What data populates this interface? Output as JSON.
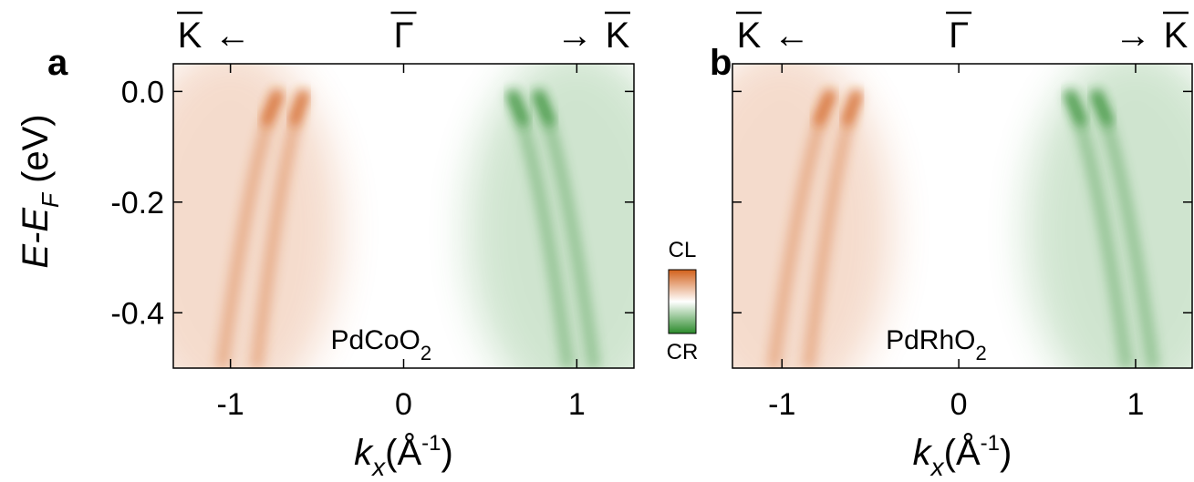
{
  "chart_data": [
    {
      "type": "image",
      "panel_label": "a",
      "top_labels": [
        "K",
        "←",
        "Γ",
        "→",
        "K"
      ],
      "sample": [
        "PdCoO",
        "2"
      ],
      "xlabel": [
        "k",
        "x",
        "(Å",
        "-1",
        ")"
      ],
      "ylabel": [
        "E-E",
        "F",
        " (eV)"
      ],
      "xlim": [
        -1.33,
        1.33
      ],
      "xticks": [
        -1,
        0,
        1
      ],
      "ylim": [
        -0.5,
        0.05
      ],
      "yticks": [
        {
          "value": 0,
          "label": "0.0"
        },
        -0.2,
        -0.4
      ],
      "colors": [
        "#d2601a",
        "#2a8a2a"
      ]
    },
    {
      "type": "image",
      "panel_label": "b",
      "top_labels": [
        "K",
        "←",
        "Γ",
        "→",
        "K"
      ],
      "sample": [
        "PdRhO",
        "2"
      ],
      "xlabel": [
        "k",
        "x",
        "(Å",
        "-1",
        ")"
      ],
      "xlim": [
        -1.28,
        1.32
      ],
      "xticks": [
        -1,
        0,
        1
      ],
      "ylim": [
        -0.5,
        0.05
      ],
      "yticks": [
        0,
        -0.2,
        -0.4
      ],
      "colors": [
        "#d2601a",
        "#2a8a2a"
      ]
    }
  ],
  "colorbar": {
    "top": "CL",
    "bottom": "CR"
  }
}
